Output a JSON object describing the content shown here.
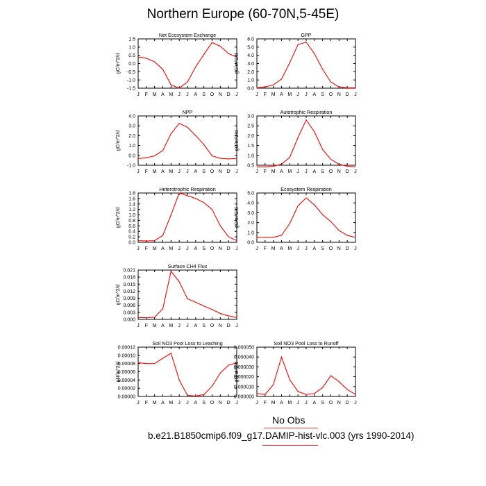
{
  "page_title": "Northern Europe (60-70N,5-45E)",
  "legend": {
    "label": "No Obs"
  },
  "case_label": "b.e21.B1850cmip6.f09_g17.DAMIP-hist-vlc.003 (yrs 1990-2014)",
  "colors": {
    "series": "#ff0000",
    "legend_line": "#ff3333"
  },
  "months": [
    "J",
    "F",
    "M",
    "A",
    "M",
    "J",
    "J",
    "A",
    "S",
    "O",
    "N",
    "D",
    "J"
  ],
  "chart_data": [
    {
      "type": "line",
      "title": "Net Ecosystem Exchange",
      "ylabel": "gC/m^2/d",
      "ylim": [
        -1.5,
        1.5
      ],
      "yticks": [
        "-1.5",
        "-1.0",
        "-0.5",
        "0.0",
        "0.5",
        "1.0",
        "1.5"
      ],
      "values": [
        0.4,
        0.32,
        0.1,
        -0.35,
        -1.3,
        -1.5,
        -1.12,
        -0.2,
        0.55,
        1.28,
        1.05,
        0.6,
        0.4
      ]
    },
    {
      "type": "line",
      "title": "GPP",
      "ylabel": "gC/m^2/d",
      "ylim": [
        0,
        6
      ],
      "yticks": [
        "0.0",
        "1.0",
        "2.0",
        "3.0",
        "4.0",
        "5.0",
        "6.0"
      ],
      "values": [
        0.05,
        0.15,
        0.4,
        1.1,
        3.1,
        5.3,
        5.6,
        4.2,
        2.3,
        0.75,
        0.15,
        0.05,
        0.05
      ]
    },
    {
      "type": "line",
      "title": "NPP",
      "ylabel": "gC/m^2/d",
      "ylim": [
        -1,
        4
      ],
      "yticks": [
        "-1.0",
        "0.0",
        "1.0",
        "2.0",
        "3.0",
        "4.0"
      ],
      "values": [
        -0.32,
        -0.25,
        -0.05,
        0.5,
        2.2,
        3.25,
        2.85,
        2.0,
        1.1,
        -0.05,
        -0.3,
        -0.35,
        -0.32
      ]
    },
    {
      "type": "line",
      "title": "Autotrophic Respiration",
      "ylabel": "gC/m^2/d",
      "ylim": [
        0.5,
        3.0
      ],
      "yticks": [
        "0.5",
        "1.0",
        "1.5",
        "2.0",
        "2.5",
        "3.0"
      ],
      "values": [
        0.42,
        0.42,
        0.45,
        0.55,
        0.9,
        1.9,
        2.8,
        2.2,
        1.3,
        0.8,
        0.55,
        0.45,
        0.42
      ]
    },
    {
      "type": "line",
      "title": "Heterotrophic Respiration",
      "ylabel": "gC/m^2/d",
      "ylim": [
        0,
        1.8
      ],
      "yticks": [
        "0.0",
        "0.2",
        "0.4",
        "0.6",
        "0.8",
        "1.0",
        "1.2",
        "1.4",
        "1.6",
        "1.8"
      ],
      "values": [
        0.06,
        0.05,
        0.06,
        0.25,
        1.0,
        1.8,
        1.7,
        1.6,
        1.45,
        1.2,
        0.6,
        0.2,
        0.06
      ]
    },
    {
      "type": "line",
      "title": "Ecosystem Respiration",
      "ylabel": "gC/m^2/d",
      "ylim": [
        0,
        5
      ],
      "yticks": [
        "0.0",
        "1.0",
        "2.0",
        "3.0",
        "4.0",
        "5.0"
      ],
      "values": [
        0.5,
        0.5,
        0.5,
        0.72,
        1.9,
        3.7,
        4.5,
        3.8,
        2.8,
        2.1,
        1.2,
        0.7,
        0.5
      ]
    },
    {
      "type": "line",
      "title": "Surface CH4 Flux",
      "ylabel": "gC/m^2/d",
      "ylim": [
        0,
        0.021
      ],
      "yticks": [
        "0.000",
        "0.003",
        "0.006",
        "0.009",
        "0.012",
        "0.015",
        "0.018",
        "0.021"
      ],
      "values": [
        0.0008,
        0.0007,
        0.0009,
        0.0045,
        0.0205,
        0.016,
        0.0088,
        0.0073,
        0.0057,
        0.0042,
        0.0025,
        0.0015,
        0.0008
      ]
    },
    {
      "type": "line",
      "title": "Soil NO3 Pool Loss to Leaching",
      "ylabel": "gN/m^2/d",
      "ylim": [
        0,
        0.00012
      ],
      "yticks": [
        "0.00000",
        "0.00002",
        "0.00004",
        "0.00006",
        "0.00008",
        "0.00010",
        "0.00012"
      ],
      "values": [
        8.2e-05,
        8e-05,
        8e-05,
        9.3e-05,
        0.000105,
        4e-05,
        2.5e-06,
        1e-06,
        4.5e-06,
        2.5e-05,
        5.7e-05,
        7.6e-05,
        8.2e-05
      ]
    },
    {
      "type": "line",
      "title": "Soil NO3 Pool Loss to Runoff",
      "ylabel": "gN/m^2/d",
      "ylim": [
        0,
        5e-05
      ],
      "yticks": [
        "0.000000",
        "0.000010",
        "0.000020",
        "0.000030",
        "0.000040",
        "0.000050"
      ],
      "values": [
        3e-06,
        2e-06,
        1.2e-05,
        4e-05,
        1.7e-05,
        5e-06,
        2e-06,
        3e-06,
        9e-06,
        2.1e-05,
        1.5e-05,
        7e-06,
        2e-06
      ]
    }
  ]
}
